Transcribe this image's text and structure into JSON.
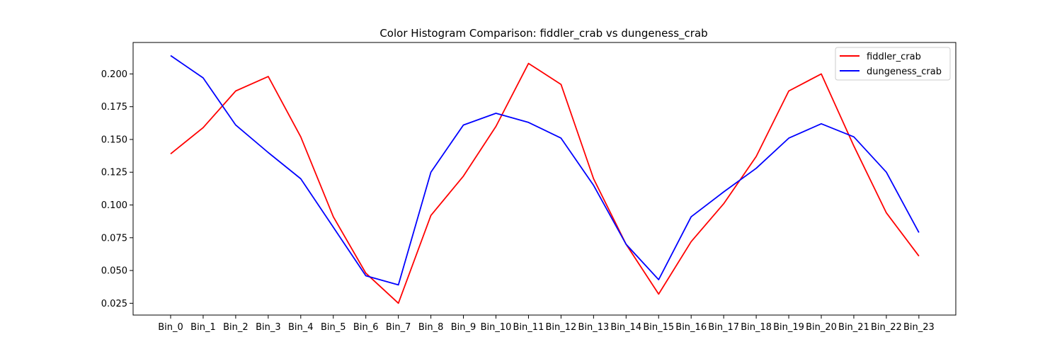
{
  "chart_data": {
    "type": "line",
    "title": "Color Histogram Comparison: fiddler_crab vs dungeness_crab",
    "xlabel": "",
    "ylabel": "",
    "categories": [
      "Bin_0",
      "Bin_1",
      "Bin_2",
      "Bin_3",
      "Bin_4",
      "Bin_5",
      "Bin_6",
      "Bin_7",
      "Bin_8",
      "Bin_9",
      "Bin_10",
      "Bin_11",
      "Bin_12",
      "Bin_13",
      "Bin_14",
      "Bin_15",
      "Bin_16",
      "Bin_17",
      "Bin_18",
      "Bin_19",
      "Bin_20",
      "Bin_21",
      "Bin_22",
      "Bin_23"
    ],
    "yticks": [
      "0.025",
      "0.050",
      "0.075",
      "0.100",
      "0.125",
      "0.150",
      "0.175",
      "0.200"
    ],
    "ylim": [
      0.016,
      0.224
    ],
    "grid": false,
    "legend_position": "top-right",
    "series": [
      {
        "name": "fiddler_crab",
        "color": "#ff0000",
        "values": [
          0.139,
          0.159,
          0.187,
          0.198,
          0.152,
          0.091,
          0.048,
          0.025,
          0.092,
          0.122,
          0.16,
          0.208,
          0.192,
          0.12,
          0.07,
          0.032,
          0.072,
          0.101,
          0.137,
          0.187,
          0.2,
          0.145,
          0.094,
          0.061
        ]
      },
      {
        "name": "dungeness_crab",
        "color": "#0000ff",
        "values": [
          0.214,
          0.197,
          0.161,
          0.14,
          0.12,
          0.083,
          0.046,
          0.039,
          0.125,
          0.161,
          0.17,
          0.163,
          0.151,
          0.115,
          0.07,
          0.043,
          0.091,
          0.11,
          0.128,
          0.151,
          0.162,
          0.152,
          0.125,
          0.079
        ]
      }
    ]
  }
}
